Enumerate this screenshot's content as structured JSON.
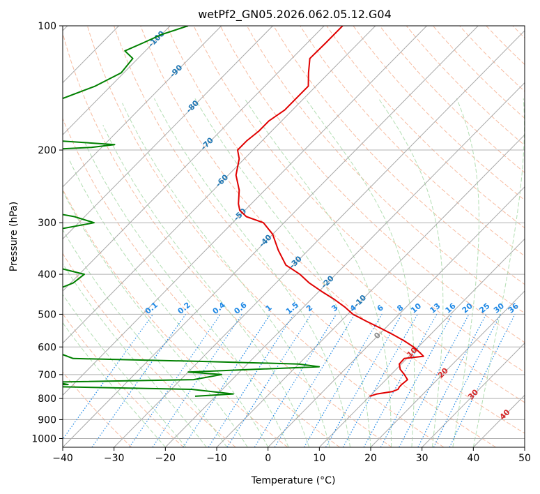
{
  "chart_data": {
    "type": "line",
    "title": "wetPf2_GN05.2026.062.05.12.G04",
    "xlabel": "Temperature (°C)",
    "ylabel": "Pressure (hPa)",
    "xlim": [
      -40,
      50
    ],
    "ylim": [
      1050,
      100
    ],
    "y_scale": "log",
    "grid": true,
    "x_ticks": [
      -40,
      -30,
      -20,
      -10,
      0,
      10,
      20,
      30,
      40,
      50
    ],
    "y_ticks": [
      100,
      200,
      300,
      400,
      500,
      600,
      700,
      800,
      900,
      1000
    ],
    "colors": {
      "temperature": "#e00000",
      "dewpoint": "#008000",
      "dry_adiabat": "#f4a582",
      "moist_adiabat": "#a6d8a6",
      "mixing_ratio": "#1e88e5",
      "isotherm_label": "#1f77b4"
    },
    "isotherm_labels": [
      "-100",
      "-90",
      "-80",
      "-70",
      "-60",
      "-50",
      "-40",
      "-30",
      "-20",
      "-10",
      "0",
      "10",
      "20",
      "30",
      "40"
    ],
    "mixing_ratio_labels": [
      "0.1",
      "0.2",
      "0.4",
      "0.6",
      "1",
      "1.5",
      "2",
      "3",
      "4",
      "6",
      "8",
      "10",
      "13",
      "16",
      "20",
      "25",
      "30",
      "36"
    ],
    "series": [
      {
        "name": "Temperature",
        "points": [
          [
            -66.4,
            100
          ],
          [
            -66.4,
            110
          ],
          [
            -66.5,
            120
          ],
          [
            -64.0,
            130
          ],
          [
            -61.5,
            140
          ],
          [
            -61.5,
            160
          ],
          [
            -62.5,
            170
          ],
          [
            -62.5,
            180
          ],
          [
            -63.0,
            190
          ],
          [
            -63.0,
            200
          ],
          [
            -61.0,
            210
          ],
          [
            -58.5,
            230
          ],
          [
            -55.0,
            250
          ],
          [
            -52.5,
            270
          ],
          [
            -51.0,
            280
          ],
          [
            -48.5,
            290
          ],
          [
            -44.0,
            300
          ],
          [
            -40.0,
            320
          ],
          [
            -35.8,
            350
          ],
          [
            -31.5,
            380
          ],
          [
            -27.0,
            400
          ],
          [
            -23.5,
            420
          ],
          [
            -19.5,
            440
          ],
          [
            -15.5,
            460
          ],
          [
            -12.0,
            480
          ],
          [
            -9.0,
            500
          ],
          [
            -5.0,
            520
          ],
          [
            -1.0,
            540
          ],
          [
            2.7,
            560
          ],
          [
            6.1,
            580
          ],
          [
            9.1,
            600
          ],
          [
            11.5,
            620
          ],
          [
            12.8,
            632
          ],
          [
            9.5,
            640
          ],
          [
            9.6,
            660
          ],
          [
            10.8,
            680
          ],
          [
            12.6,
            700
          ],
          [
            14.2,
            720
          ],
          [
            14.0,
            740
          ],
          [
            14.0,
            750
          ],
          [
            14.2,
            760
          ],
          [
            13.5,
            770
          ],
          [
            11.0,
            780
          ],
          [
            10.0,
            790
          ]
        ]
      },
      {
        "name": "Dewpoint",
        "points": [
          [
            -96.5,
            100
          ],
          [
            -100.0,
            105
          ],
          [
            -102.0,
            110
          ],
          [
            -104.0,
            115
          ],
          [
            -101.0,
            120
          ],
          [
            -100.5,
            130
          ],
          [
            -103.0,
            140
          ],
          [
            -107.0,
            150
          ],
          [
            -108.5,
            160
          ],
          [
            -107.5,
            170
          ],
          [
            -108.0,
            180
          ],
          [
            -107.5,
            186
          ],
          [
            -99.5,
            190
          ],
          [
            -88.0,
            194
          ],
          [
            -92.0,
            197
          ],
          [
            -102.0,
            200
          ],
          [
            -99.5,
            210
          ],
          [
            -99.0,
            230
          ],
          [
            -99.5,
            250
          ],
          [
            -98.0,
            260
          ],
          [
            -93.0,
            270
          ],
          [
            -90.0,
            280
          ],
          [
            -82.0,
            290
          ],
          [
            -77.0,
            300
          ],
          [
            -87.0,
            320
          ],
          [
            -95.0,
            340
          ],
          [
            -89.0,
            360
          ],
          [
            -78.0,
            380
          ],
          [
            -69.0,
            400
          ],
          [
            -69.5,
            420
          ],
          [
            -72.0,
            440
          ],
          [
            -75.0,
            460
          ],
          [
            -77.0,
            480
          ],
          [
            -77.5,
            500
          ],
          [
            -76.5,
            520
          ],
          [
            -75.5,
            540
          ],
          [
            -72.5,
            560
          ],
          [
            -69.0,
            580
          ],
          [
            -64.0,
            600
          ],
          [
            -59.0,
            620
          ],
          [
            -55.0,
            640
          ],
          [
            -30.5,
            650
          ],
          [
            -10.0,
            660
          ],
          [
            -5.5,
            670
          ],
          [
            -30.0,
            690
          ],
          [
            -23.0,
            700
          ],
          [
            -27.5,
            720
          ],
          [
            -54.0,
            730
          ],
          [
            -51.0,
            740
          ],
          [
            -62.0,
            745
          ],
          [
            -26.0,
            760
          ],
          [
            -17.0,
            780
          ],
          [
            -24.0,
            790
          ]
        ]
      }
    ]
  }
}
